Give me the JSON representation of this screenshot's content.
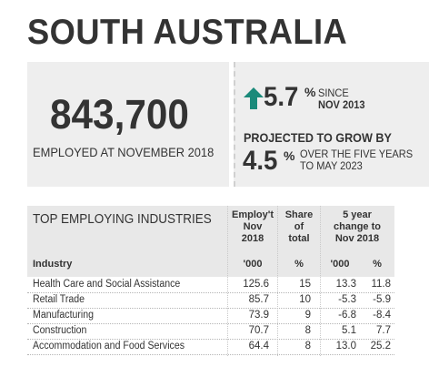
{
  "title": "SOUTH AUSTRALIA",
  "headline": {
    "employed": "843,700",
    "caption": "EMPLOYED AT NOVEMBER 2018"
  },
  "growth": {
    "value": "5.7",
    "pct": "%",
    "since_line1": "SINCE",
    "since_line2": "NOV 2013",
    "arrow_color": "#1a8a7a"
  },
  "projection": {
    "title": "PROJECTED TO GROW BY",
    "value": "4.5",
    "pct": "%",
    "line1": "OVER THE FIVE YEARS",
    "line2": "TO MAY 2023"
  },
  "table": {
    "title": "TOP EMPLOYING INDUSTRIES",
    "headers": {
      "employ_1": "Employ't",
      "employ_2": "Nov",
      "employ_3": "2018",
      "share_1": "Share",
      "share_2": "of",
      "share_3": "total",
      "change_1": "5 year",
      "change_2": "change to",
      "change_3": "Nov 2018"
    },
    "units": {
      "industry": "Industry",
      "employ": "'000",
      "share": "%",
      "change_abs": "'000",
      "change_pct": "%"
    },
    "rows": [
      {
        "industry": "Health Care and Social Assistance",
        "employ": "125.6",
        "share": "15",
        "change_abs": "13.3",
        "change_pct": "11.8"
      },
      {
        "industry": "Retail Trade",
        "employ": "85.7",
        "share": "10",
        "change_abs": "-5.3",
        "change_pct": "-5.9"
      },
      {
        "industry": "Manufacturing",
        "employ": "73.9",
        "share": "9",
        "change_abs": "-6.8",
        "change_pct": "-8.4"
      },
      {
        "industry": "Construction",
        "employ": "70.7",
        "share": "8",
        "change_abs": "5.1",
        "change_pct": "7.7"
      },
      {
        "industry": "Accommodation and Food Services",
        "employ": "64.4",
        "share": "8",
        "change_abs": "13.0",
        "change_pct": "25.2"
      }
    ]
  }
}
